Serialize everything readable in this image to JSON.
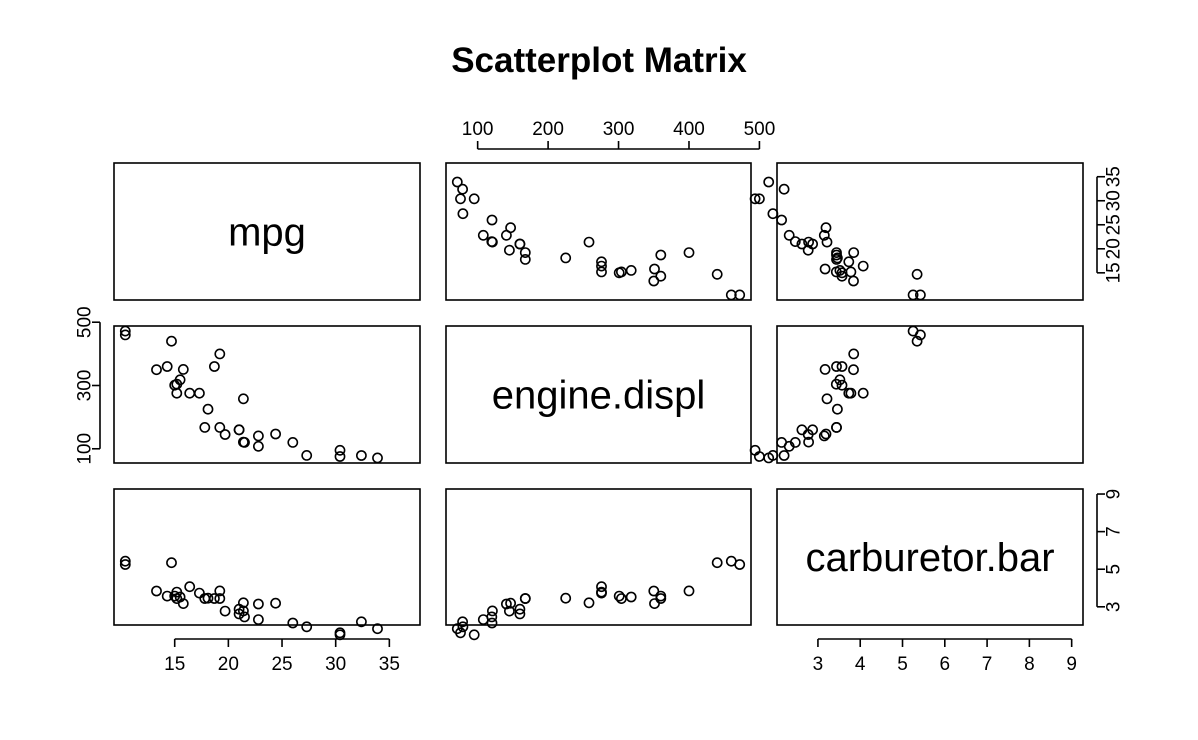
{
  "chart_data": {
    "type": "scatter",
    "title": "Scatterplot Matrix",
    "variables": [
      "mpg",
      "engine.displ",
      "carburetor.bar"
    ],
    "axes": {
      "mpg": {
        "range": [
          10.4,
          36.8
        ],
        "ticks": [
          15,
          20,
          25,
          30,
          35
        ]
      },
      "engine.displ": {
        "range": [
          71.1,
          472
        ],
        "ticks": [
          100,
          200,
          300,
          400,
          500
        ],
        "ticks_right": [
          100,
          300,
          500
        ]
      },
      "carburetor.bar": {
        "range": [
          2.3,
          9.0
        ],
        "ticks": [
          3,
          4,
          5,
          6,
          7,
          8,
          9
        ],
        "ticks_left": [
          3,
          5,
          7,
          9
        ]
      }
    },
    "grid": false,
    "legend": "none",
    "observations": {
      "mpg": [
        21.0,
        21.0,
        22.8,
        21.4,
        18.7,
        18.1,
        14.3,
        24.4,
        22.8,
        19.2,
        17.8,
        16.4,
        17.3,
        15.2,
        10.4,
        10.4,
        14.7,
        32.4,
        30.4,
        33.9,
        21.5,
        15.5,
        15.2,
        13.3,
        19.2,
        27.3,
        26.0,
        30.4,
        15.8,
        19.7,
        15.0,
        21.4
      ],
      "engine.displ": [
        160.0,
        160.0,
        108.0,
        258.0,
        360.0,
        225.0,
        360.0,
        146.7,
        140.8,
        167.6,
        167.6,
        275.8,
        275.8,
        275.8,
        472.0,
        460.0,
        440.0,
        78.7,
        75.7,
        71.1,
        120.1,
        318.0,
        304.0,
        350.0,
        400.0,
        79.0,
        120.3,
        95.1,
        351.0,
        145.0,
        301.0,
        121.0
      ],
      "carburetor.bar": [
        2.62,
        2.875,
        2.32,
        3.215,
        3.44,
        3.46,
        3.57,
        3.19,
        3.15,
        3.44,
        3.44,
        4.07,
        3.73,
        3.78,
        5.25,
        5.424,
        5.345,
        2.2,
        1.615,
        1.835,
        2.465,
        3.52,
        3.435,
        3.84,
        3.845,
        1.935,
        2.14,
        1.513,
        3.17,
        2.77,
        3.57,
        2.78
      ]
    }
  }
}
